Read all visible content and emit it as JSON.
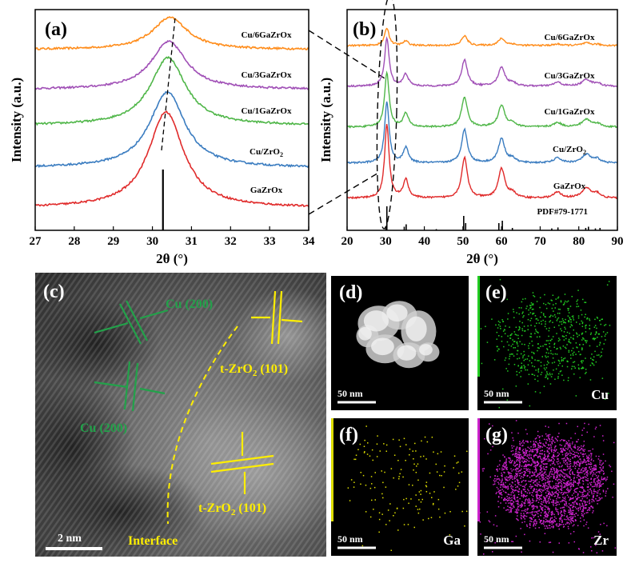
{
  "colors": {
    "Cu/6GaZrOx": "#ff8c1a",
    "Cu/3GaZrOx": "#a04fb6",
    "Cu/1GaZrOx": "#4fb648",
    "Cu/ZrO2": "#3a7cc0",
    "GaZrOx": "#e02a2a",
    "cu_annotation": "#22a24a",
    "zro2_annotation": "#ffee00",
    "map_cu": "#22cc22",
    "map_ga": "#dddd00",
    "map_zr": "#cc22cc"
  },
  "chart_data": [
    {
      "panel": "(a)",
      "type": "line",
      "xlabel": "2θ (°)",
      "ylabel": "Intensity (a.u.)",
      "xlim": [
        27,
        34
      ],
      "xticks": [
        "27",
        "28",
        "29",
        "30",
        "31",
        "32",
        "33",
        "34"
      ],
      "reference_line_x": 30.27,
      "series": [
        {
          "name": "Cu/6GaZrOx",
          "label": "Cu/6GaZrOx",
          "peak_2theta": 30.45,
          "peak_height": 0.28
        },
        {
          "name": "Cu/3GaZrOx",
          "label": "Cu/3GaZrOx",
          "peak_2theta": 30.42,
          "peak_height": 0.5
        },
        {
          "name": "Cu/1GaZrOx",
          "label": "Cu/1GaZrOx",
          "peak_2theta": 30.4,
          "peak_height": 0.9
        },
        {
          "name": "Cu/ZrO2",
          "label": "Cu/ZrO",
          "label_sub": "2",
          "peak_2theta": 30.38,
          "peak_height": 1.0
        },
        {
          "name": "GaZrOx",
          "label": "GaZrOx",
          "peak_2theta": 30.35,
          "peak_height": 1.2
        }
      ]
    },
    {
      "panel": "(b)",
      "type": "line",
      "xlabel": "2θ (°)",
      "ylabel": "Intensity (a.u.)",
      "xlim": [
        20,
        90
      ],
      "xticks": [
        "20",
        "30",
        "40",
        "50",
        "60",
        "70",
        "80",
        "90"
      ],
      "reference_label": "PDF#79-1771",
      "reference_peaks": [
        {
          "x": 30.3,
          "h": 1.0
        },
        {
          "x": 34.8,
          "h": 0.15
        },
        {
          "x": 35.3,
          "h": 0.25
        },
        {
          "x": 43.1,
          "h": 0.05
        },
        {
          "x": 50.2,
          "h": 0.6
        },
        {
          "x": 50.7,
          "h": 0.3
        },
        {
          "x": 59.3,
          "h": 0.3
        },
        {
          "x": 60.2,
          "h": 0.4
        },
        {
          "x": 62.8,
          "h": 0.1
        },
        {
          "x": 73.0,
          "h": 0.08
        },
        {
          "x": 74.6,
          "h": 0.12
        },
        {
          "x": 81.8,
          "h": 0.1
        },
        {
          "x": 82.5,
          "h": 0.15
        },
        {
          "x": 84.3,
          "h": 0.08
        },
        {
          "x": 85.5,
          "h": 0.1
        }
      ],
      "series": [
        {
          "name": "Cu/6GaZrOx",
          "label": "Cu/6GaZrOx",
          "scale": 0.25
        },
        {
          "name": "Cu/3GaZrOx",
          "label": "Cu/3GaZrOx",
          "scale": 0.7
        },
        {
          "name": "Cu/1GaZrOx",
          "label": "Cu/1GaZrOx",
          "scale": 0.85
        },
        {
          "name": "Cu/ZrO2",
          "label": "Cu/ZrO",
          "label_sub": "2",
          "scale": 0.95
        },
        {
          "name": "GaZrOx",
          "label": "GaZrOx",
          "scale": 1.0
        }
      ],
      "peaks": [
        {
          "x": 30.3,
          "h": 1.0,
          "w": 0.7
        },
        {
          "x": 35.2,
          "h": 0.25,
          "w": 0.8
        },
        {
          "x": 50.4,
          "h": 0.55,
          "w": 0.9
        },
        {
          "x": 60.0,
          "h": 0.4,
          "w": 1.0
        },
        {
          "x": 62.8,
          "h": 0.07,
          "w": 1.0
        },
        {
          "x": 74.5,
          "h": 0.08,
          "w": 1.2
        },
        {
          "x": 82.0,
          "h": 0.14,
          "w": 1.4
        },
        {
          "x": 84.8,
          "h": 0.06,
          "w": 1.0
        }
      ]
    }
  ],
  "tem": {
    "panel": "(c)",
    "cu_label_1": "Cu (200)",
    "cu_label_2": "Cu (200)",
    "zro2_label_1": "t-ZrO",
    "zro2_label_1_sub": "2",
    "zro2_label_1_tail": " (101)",
    "zro2_label_2": "t-ZrO",
    "zro2_label_2_sub": "2",
    "zro2_label_2_tail": " (101)",
    "interface_label": "Interface",
    "scale_bar": "2 nm"
  },
  "maps": [
    {
      "panel": "(d)",
      "element": "",
      "scale_bar": "50 nm"
    },
    {
      "panel": "(e)",
      "element": "Cu",
      "scale_bar": "50 nm"
    },
    {
      "panel": "(f)",
      "element": "Ga",
      "scale_bar": "50 nm"
    },
    {
      "panel": "(g)",
      "element": "Zr",
      "scale_bar": "50 nm"
    }
  ]
}
